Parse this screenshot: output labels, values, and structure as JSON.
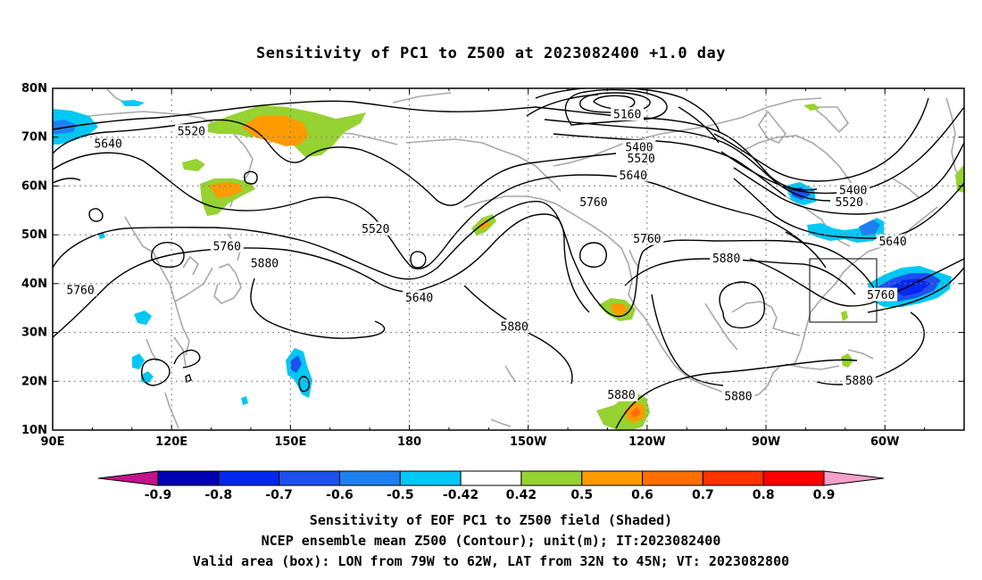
{
  "title": "Sensitivity of PC1 to Z500 at 2023082400 +1.0 day",
  "axes": {
    "lat_ticks": [
      "80N",
      "70N",
      "60N",
      "50N",
      "40N",
      "30N",
      "20N",
      "10N"
    ],
    "lon_ticks": [
      "90E",
      "120E",
      "150E",
      "180",
      "150W",
      "120W",
      "90W",
      "60W"
    ]
  },
  "contour_labels": [
    {
      "text": "5520",
      "lon": 125,
      "lat": 71
    },
    {
      "text": "5640",
      "lon": 104,
      "lat": 68.5
    },
    {
      "text": "5160",
      "lon": -125,
      "lat": 74.5
    },
    {
      "text": "5400",
      "lon": -122,
      "lat": 67.8
    },
    {
      "text": "5520",
      "lon": -121.5,
      "lat": 65.5
    },
    {
      "text": "5640",
      "lon": -123.5,
      "lat": 62
    },
    {
      "text": "5760",
      "lon": -133.5,
      "lat": 56.5
    },
    {
      "text": "5520",
      "lon": 171.5,
      "lat": 51
    },
    {
      "text": "5760",
      "lon": -120,
      "lat": 49
    },
    {
      "text": "5400",
      "lon": -68,
      "lat": 59
    },
    {
      "text": "5520",
      "lon": -69,
      "lat": 56.5
    },
    {
      "text": "5760",
      "lon": 134,
      "lat": 47.5
    },
    {
      "text": "5880",
      "lon": 143.5,
      "lat": 44
    },
    {
      "text": "5760",
      "lon": 97,
      "lat": 38.5
    },
    {
      "text": "5640",
      "lon": 182.5,
      "lat": 37
    },
    {
      "text": "5640",
      "lon": -58,
      "lat": 48.5
    },
    {
      "text": "5880",
      "lon": -100,
      "lat": 45
    },
    {
      "text": "5760",
      "lon": -61,
      "lat": 37.5
    },
    {
      "text": "5880",
      "lon": -153.5,
      "lat": 31
    },
    {
      "text": "5880",
      "lon": -126.5,
      "lat": 17
    },
    {
      "text": "5880",
      "lon": -97,
      "lat": 16.8
    },
    {
      "text": "5880",
      "lon": -66.5,
      "lat": 20
    }
  ],
  "colorbar": {
    "labels": [
      "-0.9",
      "-0.8",
      "-0.7",
      "-0.6",
      "-0.5",
      "-0.42",
      "0.42",
      "0.5",
      "0.6",
      "0.7",
      "0.8",
      "0.9"
    ],
    "colors": [
      "#c2148c",
      "#0000b4",
      "#0028f0",
      "#1e50f0",
      "#1e80f0",
      "#00c8f5",
      "#ffffff",
      "#96d232",
      "#ff9b00",
      "#ff6e00",
      "#ff3200",
      "#ff0000",
      "#f5a0c8"
    ]
  },
  "box": {
    "lon_min": -79,
    "lon_max": -62,
    "lat_min": 32,
    "lat_max": 45
  },
  "caption": {
    "line1": "Sensitivity of EOF PC1 to Z500 field (Shaded)",
    "line2": "NCEP ensemble mean Z500 (Contour); unit(m); IT:2023082400",
    "line3": "Valid area (box): LON from 79W to 62W, LAT from 32N to 45N; VT: 2023082800"
  }
}
